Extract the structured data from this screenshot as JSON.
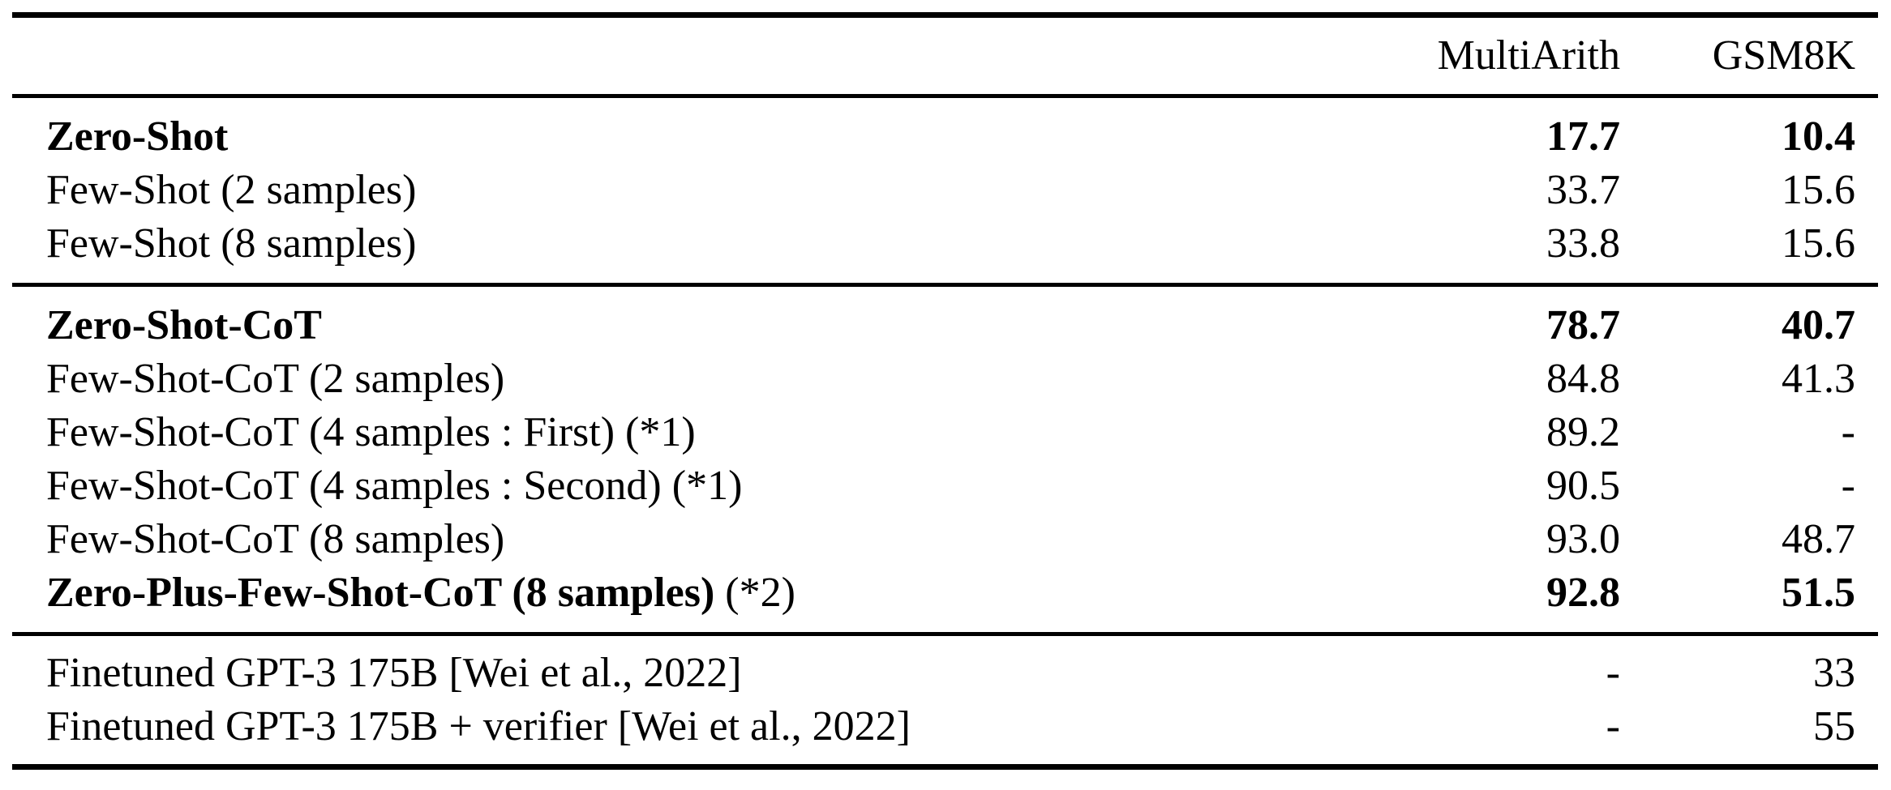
{
  "table": {
    "columns": [
      "MultiArith",
      "GSM8K"
    ],
    "rows": [
      {
        "label": "Zero-Shot",
        "suffix": "",
        "multiarith": "17.7",
        "gsm8k": "10.4"
      },
      {
        "label": "Few-Shot (2 samples)",
        "suffix": "",
        "multiarith": "33.7",
        "gsm8k": "15.6"
      },
      {
        "label": "Few-Shot (8 samples)",
        "suffix": "",
        "multiarith": "33.8",
        "gsm8k": "15.6"
      },
      {
        "label": "Zero-Shot-CoT",
        "suffix": "",
        "multiarith": "78.7",
        "gsm8k": "40.7"
      },
      {
        "label": "Few-Shot-CoT (2 samples)",
        "suffix": "",
        "multiarith": "84.8",
        "gsm8k": "41.3"
      },
      {
        "label": "Few-Shot-CoT (4 samples : First) (*1)",
        "suffix": "",
        "multiarith": "89.2",
        "gsm8k": "-"
      },
      {
        "label": "Few-Shot-CoT (4 samples : Second) (*1)",
        "suffix": "",
        "multiarith": "90.5",
        "gsm8k": "-"
      },
      {
        "label": "Few-Shot-CoT (8 samples)",
        "suffix": "",
        "multiarith": "93.0",
        "gsm8k": "48.7"
      },
      {
        "label": "Zero-Plus-Few-Shot-CoT (8 samples)",
        "suffix": " (*2)",
        "multiarith": "92.8",
        "gsm8k": "51.5"
      },
      {
        "label": "Finetuned GPT-3 175B [Wei et al., 2022]",
        "suffix": "",
        "multiarith": "-",
        "gsm8k": "33"
      },
      {
        "label": "Finetuned GPT-3 175B + verifier [Wei et al., 2022]",
        "suffix": "",
        "multiarith": "-",
        "gsm8k": "55"
      }
    ]
  }
}
